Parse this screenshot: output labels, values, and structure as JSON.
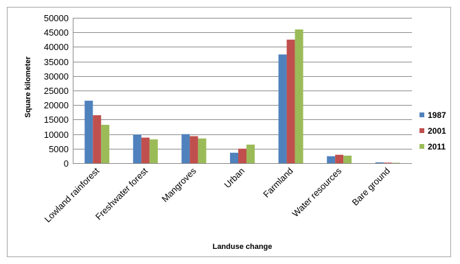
{
  "chart_data": {
    "type": "bar",
    "title": "",
    "xlabel": "Landuse change",
    "ylabel": "Square kilometer",
    "ylim": [
      0,
      50000
    ],
    "ytick_step": 5000,
    "grid": true,
    "legend_position": "right",
    "categories": [
      "Lowland rainforest",
      "Freshwater forest",
      "Mangroves",
      "Urban",
      "Farmland",
      "Water resources",
      "Bare ground"
    ],
    "series": [
      {
        "name": "1987",
        "color": "#4f81bd",
        "values": [
          21500,
          9800,
          10000,
          3600,
          37400,
          2400,
          300
        ]
      },
      {
        "name": "2001",
        "color": "#c0504d",
        "values": [
          16500,
          8800,
          9300,
          5000,
          42500,
          2900,
          200
        ]
      },
      {
        "name": "2011",
        "color": "#9bbb59",
        "values": [
          13200,
          8200,
          8500,
          6400,
          46000,
          2600,
          150
        ]
      }
    ]
  }
}
